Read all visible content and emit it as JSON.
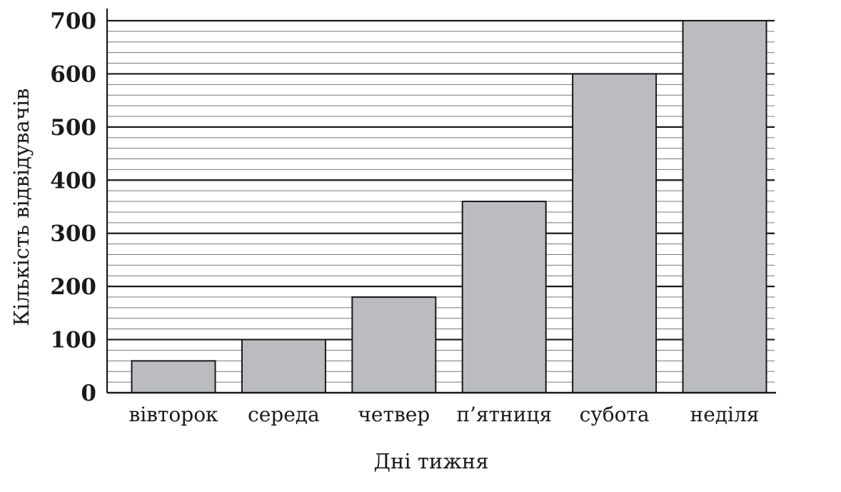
{
  "chart_data": {
    "type": "bar",
    "xlabel": "Дні тижня",
    "ylabel": "Кількість відвідувачів",
    "categories": [
      "вівторок",
      "середа",
      "четвер",
      "п’ятниця",
      "субота",
      "неділя"
    ],
    "values": [
      60,
      100,
      180,
      360,
      600,
      700
    ],
    "ylim": [
      0,
      700
    ],
    "yticks": [
      0,
      100,
      200,
      300,
      400,
      500,
      600,
      700
    ],
    "grid": true,
    "minor_grid_step": 20,
    "colors": {
      "bar_fill": "#bbbcc0",
      "bar_stroke": "#1a1a1a",
      "grid_major": "#1a1a1a",
      "grid_minor": "#777777",
      "text": "#1a1a1a"
    }
  }
}
